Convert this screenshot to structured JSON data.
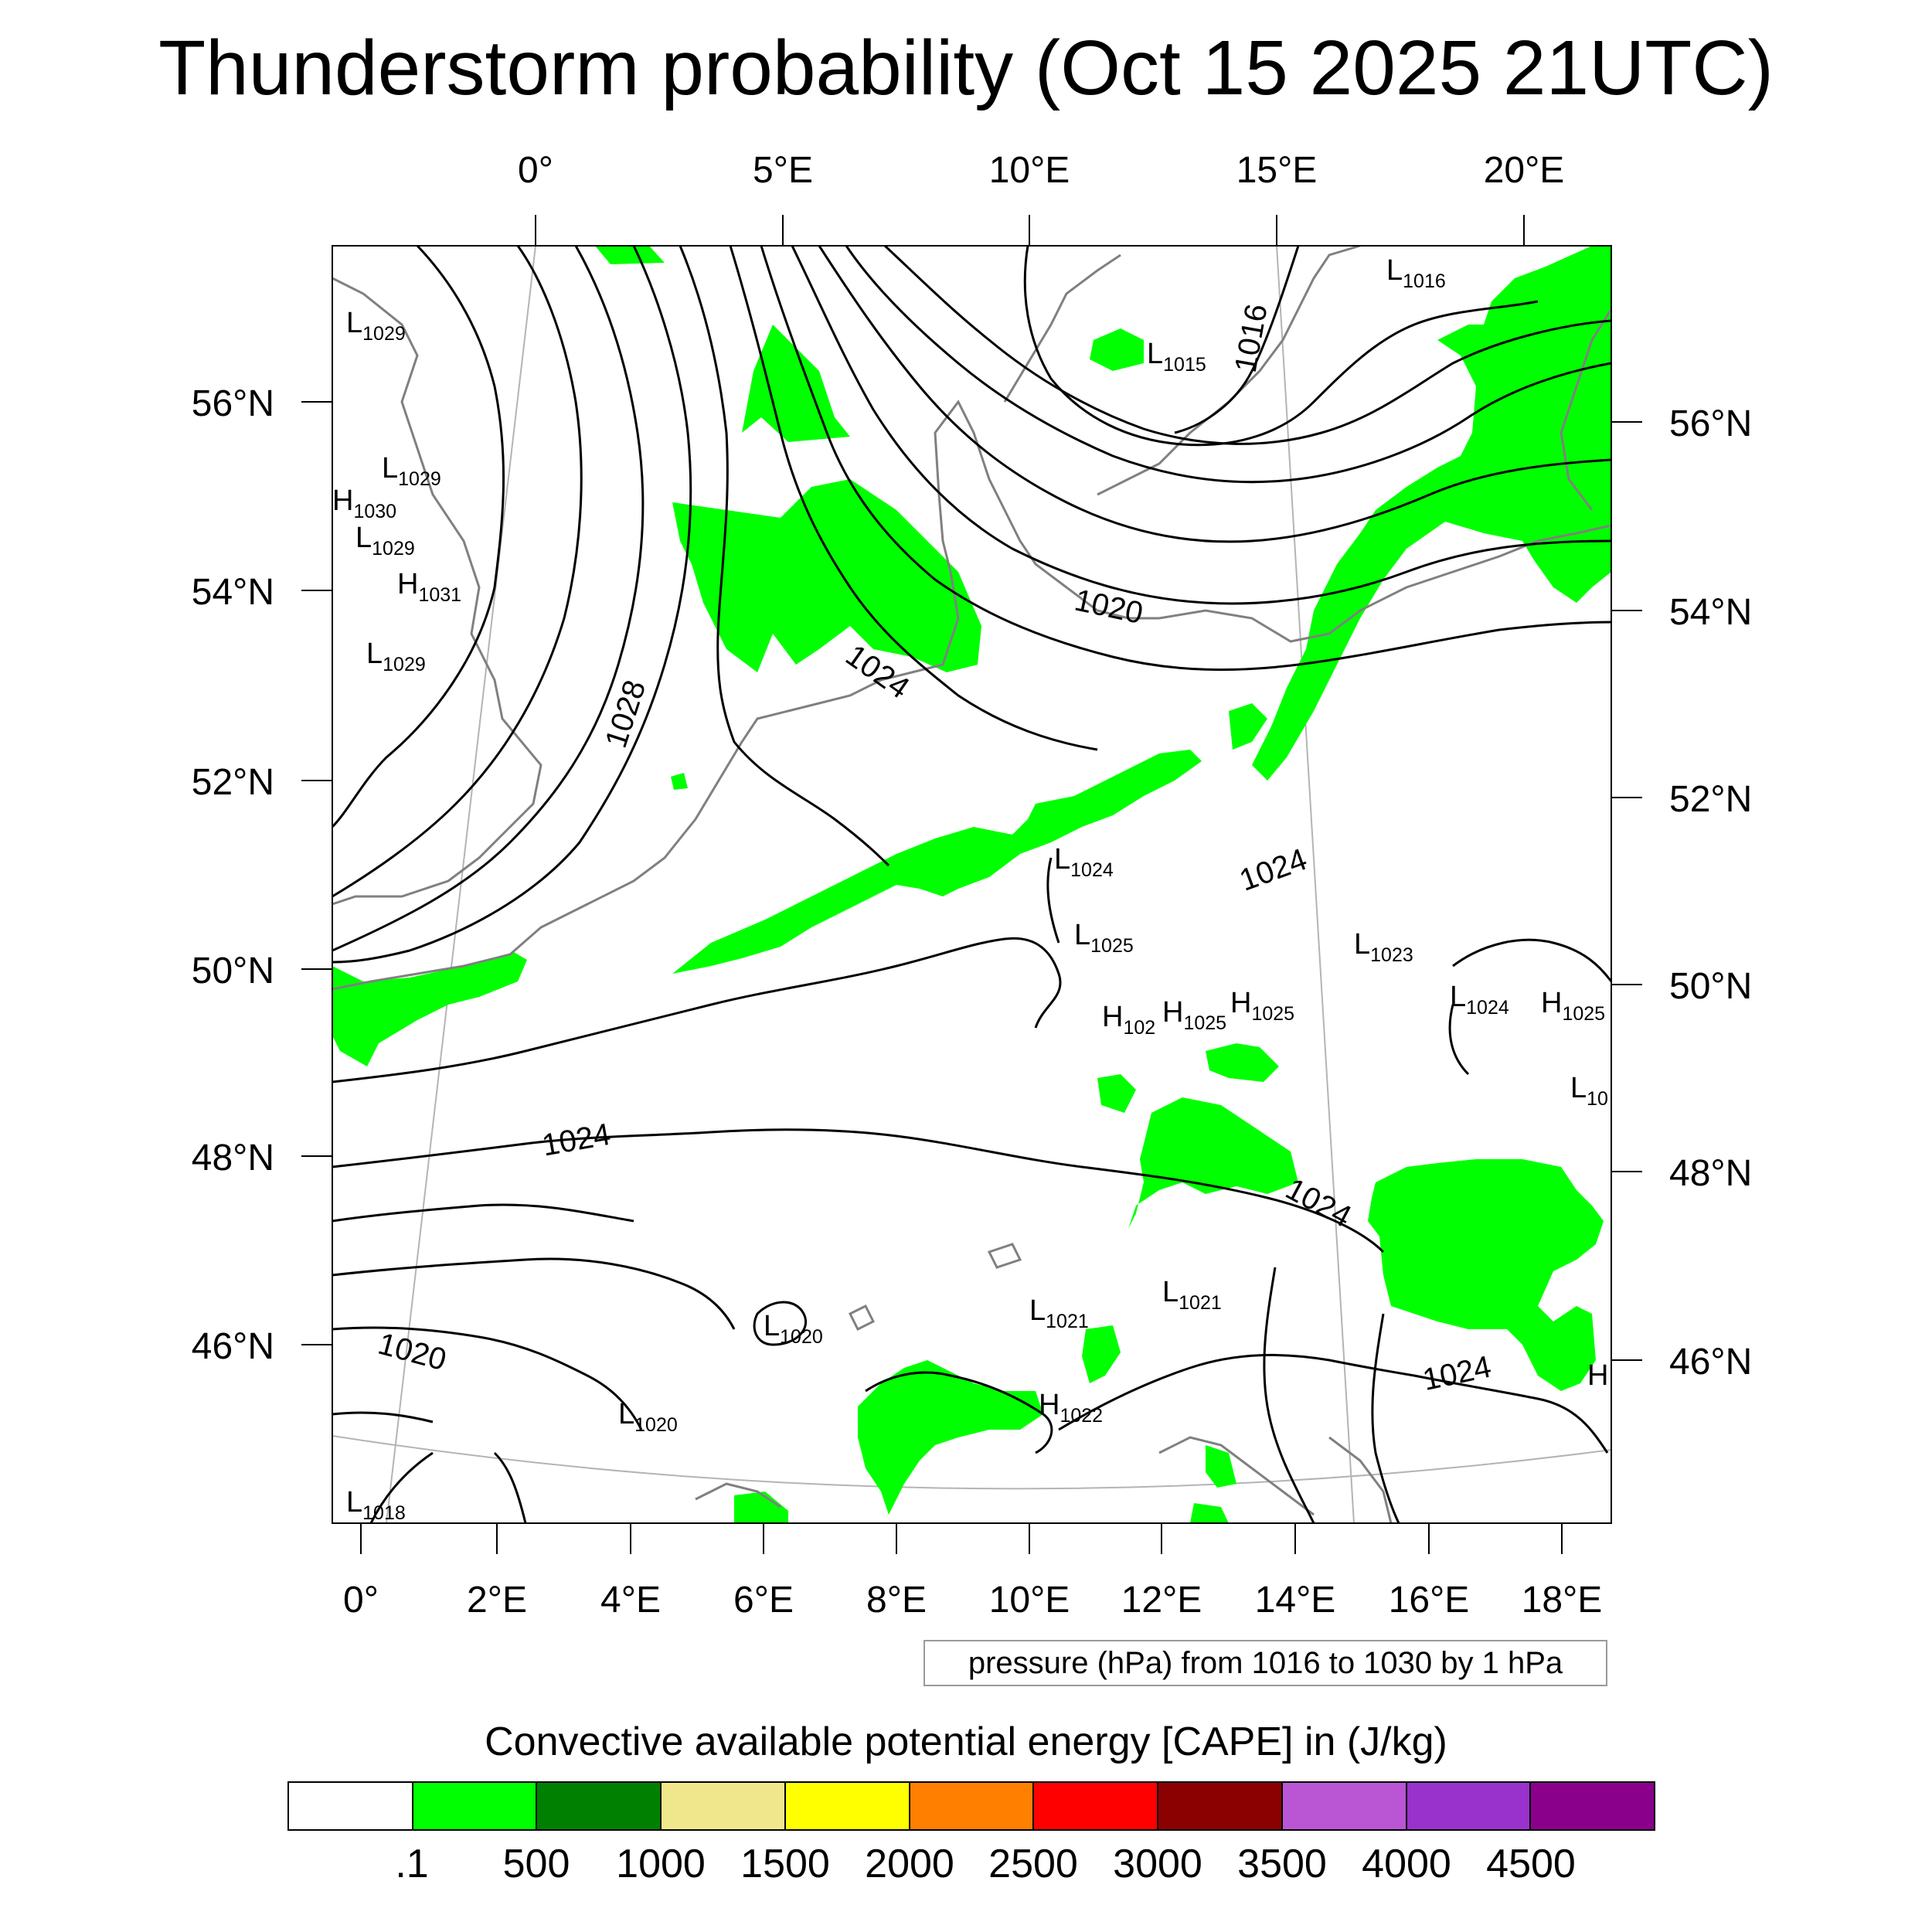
{
  "title": "Thunderstorm probability (Oct 15 2025 21UTC)",
  "top_lon_labels": [
    "0°",
    "5°E",
    "10°E",
    "15°E",
    "20°E"
  ],
  "bottom_lon_labels": [
    "0°",
    "2°E",
    "4°E",
    "6°E",
    "8°E",
    "10°E",
    "12°E",
    "14°E",
    "16°E",
    "18°E"
  ],
  "left_lat_labels": [
    "56°N",
    "54°N",
    "52°N",
    "50°N",
    "48°N",
    "46°N"
  ],
  "right_lat_labels": [
    "56°N",
    "54°N",
    "52°N",
    "50°N",
    "48°N",
    "46°N"
  ],
  "pressure_systems": [
    {
      "type": "L",
      "value": "1029"
    },
    {
      "type": "L",
      "value": "1029"
    },
    {
      "type": "H",
      "value": "1030"
    },
    {
      "type": "L",
      "value": "1029"
    },
    {
      "type": "H",
      "value": "1031"
    },
    {
      "type": "L",
      "value": "1029"
    },
    {
      "type": "L",
      "value": "1015"
    },
    {
      "type": "L",
      "value": "1016"
    },
    {
      "type": "L",
      "value": "1024"
    },
    {
      "type": "L",
      "value": "1025"
    },
    {
      "type": "L",
      "value": "1023"
    },
    {
      "type": "H",
      "value": "102"
    },
    {
      "type": "H",
      "value": "1025"
    },
    {
      "type": "H",
      "value": "1025"
    },
    {
      "type": "L",
      "value": "1024"
    },
    {
      "type": "H",
      "value": "1025"
    },
    {
      "type": "L",
      "value": "10"
    },
    {
      "type": "L",
      "value": "1021"
    },
    {
      "type": "L",
      "value": "1021"
    },
    {
      "type": "L",
      "value": "1020"
    },
    {
      "type": "L",
      "value": "1020"
    },
    {
      "type": "H",
      "value": "1022"
    },
    {
      "type": "H",
      "value": ""
    },
    {
      "type": "L",
      "value": "1018"
    }
  ],
  "contour_labels": [
    "1016",
    "1020",
    "1024",
    "1028",
    "1024",
    "1024",
    "1024",
    "1020",
    "1024"
  ],
  "pressure_note": "pressure (hPa) from 1016 to 1030 by 1 hPa",
  "colorbar": {
    "title": "Convective available potential energy [CAPE] in (J/kg)",
    "colors": [
      "#ffffff",
      "#00ff00",
      "#008000",
      "#f0e68c",
      "#ffff00",
      "#ff8000",
      "#ff0000",
      "#8b0000",
      "#ba55d3",
      "#9932cc",
      "#8b008b"
    ],
    "labels": [
      ".1",
      "500",
      "1000",
      "1500",
      "2000",
      "2500",
      "3000",
      "3500",
      "4000",
      "4500"
    ]
  },
  "colors": {
    "cape_fill": "#00ff00",
    "isobar": "#000000",
    "coastline": "#808080",
    "graticule": "#b4b4b4"
  }
}
